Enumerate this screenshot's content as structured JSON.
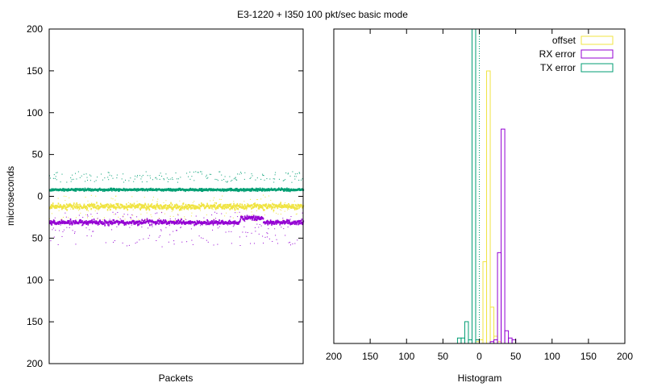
{
  "title": "E3-1220 + I350 100 pkt/sec basic mode",
  "chart_data": [
    {
      "type": "scatter",
      "ylabel": "microseconds",
      "xlabel": "Packets",
      "ylim": [
        200,
        -200
      ],
      "yticks": [
        200,
        150,
        100,
        50,
        0,
        50,
        100,
        150,
        200
      ],
      "ytick_values": [
        -200,
        -150,
        -100,
        -50,
        0,
        50,
        100,
        150,
        200
      ],
      "grid": false,
      "series": [
        {
          "name": "offset",
          "color": "#f0e442",
          "center": 12,
          "spread": 4,
          "outlier_min": -2,
          "outlier_max": 30
        },
        {
          "name": "RX error",
          "color": "#9400d3",
          "center": 31,
          "spread": 3,
          "outlier_min": 18,
          "outlier_max": 60,
          "step": {
            "from": 0.75,
            "to": 0.84,
            "value": 26
          }
        },
        {
          "name": "TX error",
          "color": "#009e73",
          "center": -8,
          "spread": 1.5,
          "outlier_min": -30,
          "outlier_max": -17
        }
      ]
    },
    {
      "type": "bar",
      "xlabel": "Histogram",
      "xlim": [
        -200,
        200
      ],
      "xticks": [
        "200",
        "150",
        "100",
        "50",
        "0",
        "50",
        "100",
        "150",
        "200"
      ],
      "xtick_values": [
        -200,
        -150,
        -100,
        -50,
        0,
        50,
        100,
        150,
        200
      ],
      "legend": "top-right",
      "bin_width": 5,
      "series": [
        {
          "name": "offset",
          "color": "#f0e442",
          "bins": [
            [
              -2.5,
              1
            ],
            [
              2.5,
              2
            ],
            [
              7.5,
              45
            ],
            [
              12.5,
              150
            ],
            [
              17.5,
              20
            ],
            [
              22.5,
              4
            ],
            [
              27.5,
              1
            ]
          ]
        },
        {
          "name": "RX error",
          "color": "#9400d3",
          "bins": [
            [
              17.5,
              1
            ],
            [
              22.5,
              2
            ],
            [
              27.5,
              50
            ],
            [
              32.5,
              118
            ],
            [
              37.5,
              7
            ],
            [
              42.5,
              3
            ],
            [
              47.5,
              2
            ]
          ]
        },
        {
          "name": "TX error",
          "color": "#009e73",
          "bins": [
            [
              -27.5,
              3
            ],
            [
              -22.5,
              3
            ],
            [
              -17.5,
              12
            ],
            [
              -12.5,
              2
            ],
            [
              -7.5,
              200
            ],
            [
              -2.5,
              2
            ]
          ]
        }
      ]
    }
  ]
}
